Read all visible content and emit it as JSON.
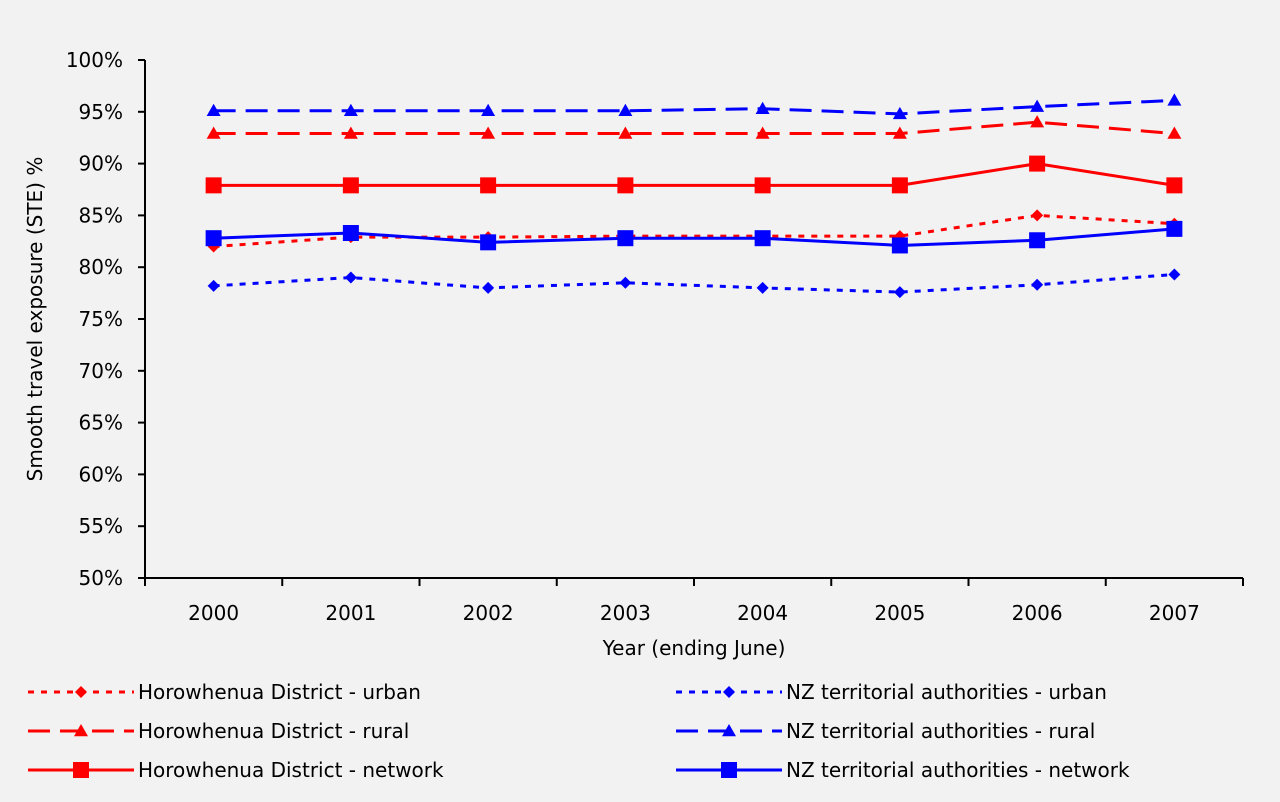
{
  "chart_data": {
    "type": "line",
    "title": "",
    "xlabel": "Year (ending June)",
    "ylabel": "Smooth travel exposure (STE) %",
    "categories": [
      "2000",
      "2001",
      "2002",
      "2003",
      "2004",
      "2005",
      "2006",
      "2007"
    ],
    "ylim": [
      50,
      100
    ],
    "ytick_step": 5,
    "ytick_suffix": "%",
    "grid": false,
    "legend_position": "bottom",
    "series": [
      {
        "name": "Horowhenua District - urban",
        "color": "#ff0000",
        "dash": "dotted",
        "marker": "diamond",
        "values": [
          82.0,
          82.9,
          82.9,
          83.0,
          83.0,
          83.0,
          85.0,
          84.2
        ]
      },
      {
        "name": "NZ territorial authorities - urban",
        "color": "#0000ff",
        "dash": "dotted",
        "marker": "diamond",
        "values": [
          78.2,
          79.0,
          78.0,
          78.5,
          78.0,
          77.6,
          78.3,
          79.3
        ]
      },
      {
        "name": "Horowhenua District - rural",
        "color": "#ff0000",
        "dash": "dashed",
        "marker": "triangle",
        "values": [
          92.9,
          92.9,
          92.9,
          92.9,
          92.9,
          92.9,
          94.0,
          92.9
        ]
      },
      {
        "name": "NZ territorial authorities - rural",
        "color": "#0000ff",
        "dash": "dashed",
        "marker": "triangle",
        "values": [
          95.1,
          95.1,
          95.1,
          95.1,
          95.3,
          94.8,
          95.5,
          96.1
        ]
      },
      {
        "name": "Horowhenua District - network",
        "color": "#ff0000",
        "dash": "solid",
        "marker": "square",
        "values": [
          87.9,
          87.9,
          87.9,
          87.9,
          87.9,
          87.9,
          90.0,
          87.9
        ]
      },
      {
        "name": "NZ territorial authorities - network",
        "color": "#0000ff",
        "dash": "solid",
        "marker": "square",
        "values": [
          82.8,
          83.3,
          82.4,
          82.8,
          82.8,
          82.1,
          82.6,
          83.7
        ]
      }
    ]
  }
}
